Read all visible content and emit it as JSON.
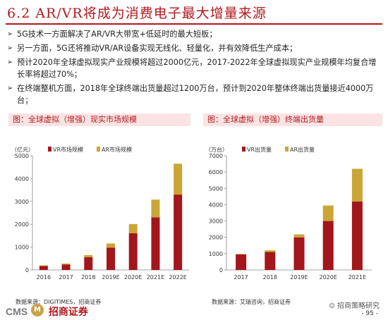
{
  "slide": {
    "title": "6.2 AR/VR将成为消费电子最大增量来源",
    "bullets": [
      "5G技术一方面解决了AR/VR大带宽+低延时的最大短板；",
      "另一方面，5G还将推动VR/AR设备实现无线化、轻量化，并有效降低生产成本；",
      "预计2020年全球虚拟现实产业规模将超过2000亿元，2017-2022年全球虚拟现实产业规模年均复合增长率将超过70%；",
      "在终端整机方面，2018年全球终端出货量超过1200万台，预计到2020年整体终端出货量接近4000万台；"
    ]
  },
  "left_panel": {
    "heading": "图：全球虚拟（增强）现实市场规模",
    "source": "数据来源：DIGITIMES，招商证券"
  },
  "right_panel": {
    "heading": "图：全球虚拟（增强）终端出货量",
    "source": "数据来源：艾瑞咨询，招商证券"
  },
  "footer": {
    "logo_cms": "CMS",
    "logo_badge": "M",
    "logo_text": "招商证券",
    "wechat": "招商策略研究",
    "page": "- 95 -"
  },
  "colors": {
    "vr": "#a3161b",
    "ar": "#c9a635",
    "accent": "#b2191f"
  },
  "chart_data": [
    {
      "type": "bar",
      "stacked": true,
      "unit_label": "（亿元）",
      "categories": [
        "2016",
        "2017",
        "2018",
        "2019E",
        "2020E",
        "2021E",
        "2022E"
      ],
      "series": [
        {
          "name": "VR市场规模",
          "values": [
            170,
            240,
            560,
            980,
            1610,
            2300,
            3300
          ]
        },
        {
          "name": "AR市场规模",
          "values": [
            30,
            40,
            90,
            180,
            400,
            780,
            1350
          ]
        }
      ],
      "ylim": [
        0,
        5000
      ],
      "yticks": [
        "0",
        "1000",
        "2000",
        "3000",
        "4000",
        "5000"
      ],
      "legend": "top"
    },
    {
      "type": "bar",
      "stacked": true,
      "unit_label": "（万台）",
      "categories": [
        "2017",
        "2018",
        "2019E",
        "2020E",
        "2021E"
      ],
      "series": [
        {
          "name": "VR出货量",
          "values": [
            950,
            1100,
            2000,
            3000,
            4200
          ]
        },
        {
          "name": "AR出货量",
          "values": [
            30,
            100,
            180,
            950,
            2000
          ]
        }
      ],
      "ylim": [
        0,
        7000
      ],
      "yticks": [
        "0",
        "1000",
        "2000",
        "3000",
        "4000",
        "5000",
        "6000",
        "7000"
      ],
      "legend": "top"
    }
  ]
}
